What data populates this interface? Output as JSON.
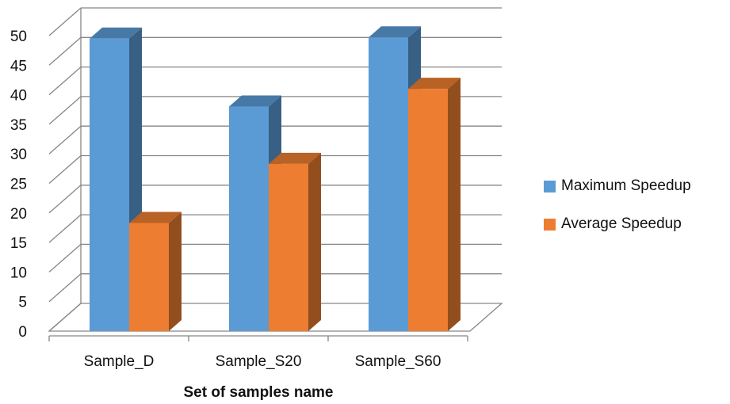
{
  "chart_data": {
    "type": "bar",
    "title": "",
    "xlabel": "Set of samples name",
    "ylabel": "",
    "categories": [
      "Sample_D",
      "Sample_S20",
      "Sample_S60"
    ],
    "series": [
      {
        "name": "Maximum Speedup",
        "values": [
          49.5,
          38,
          49.7
        ],
        "color": "#5B9BD5"
      },
      {
        "name": "Average Speedup",
        "values": [
          18.3,
          28.3,
          41
        ],
        "color": "#ED7D31"
      }
    ],
    "ylim": [
      0,
      50
    ],
    "yticks": [
      0,
      5,
      10,
      15,
      20,
      25,
      30,
      35,
      40,
      45,
      50
    ],
    "grid": true,
    "legend_position": "right",
    "style": "3d-clustered-column"
  }
}
